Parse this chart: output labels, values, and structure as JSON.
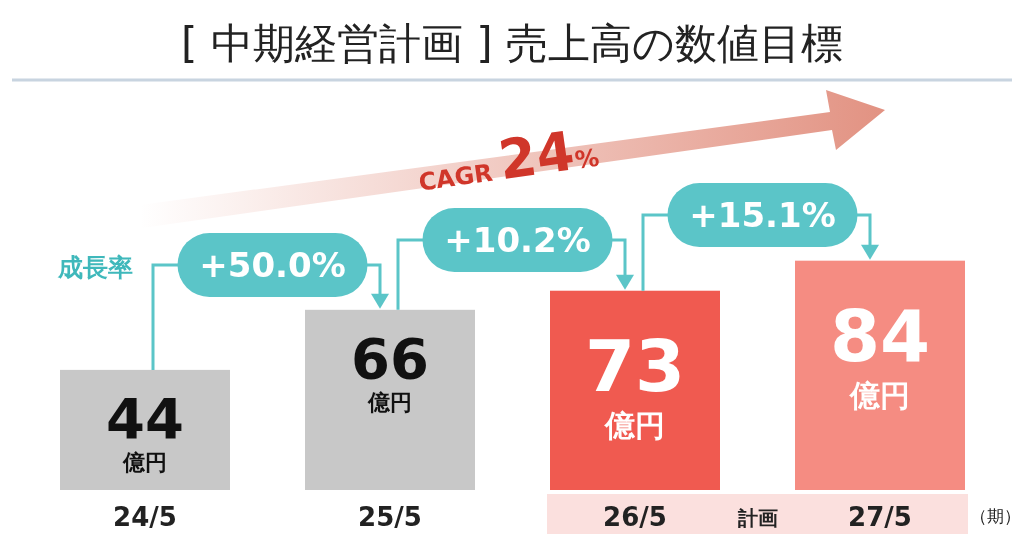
{
  "chart_data": {
    "type": "bar",
    "title": "[ 中期経営計画 ] 売上高の数値目標",
    "categories": [
      "24/5",
      "25/5",
      "26/5",
      "27/5"
    ],
    "values": [
      44,
      66,
      73,
      84
    ],
    "colors": [
      "#c8c8c8",
      "#c8c8c8",
      "#f05a50",
      "#f58c82"
    ],
    "value_labels": [
      "44億円",
      "66億円",
      "73億円",
      "84億円"
    ],
    "annotations": [
      "成長率",
      "+50.0%",
      "+10.2%",
      "+15.1%",
      "CAGR 24%",
      "計画",
      "（期）"
    ]
  }
}
